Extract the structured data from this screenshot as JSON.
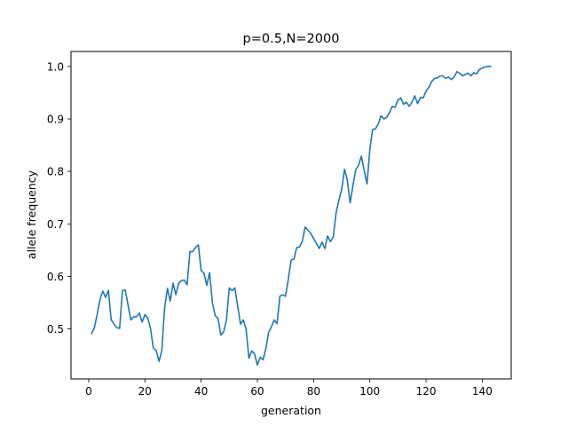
{
  "chart_data": {
    "type": "line",
    "title": "p=0.5,N=2000",
    "xlabel": "generation",
    "ylabel": "allele frequency",
    "xlim": [
      -6.3,
      150.3
    ],
    "ylim": [
      0.4045,
      1.0285
    ],
    "xticks": [
      0,
      20,
      40,
      60,
      80,
      100,
      120,
      140
    ],
    "yticks": [
      0.5,
      0.6,
      0.7,
      0.8,
      0.9,
      1.0
    ],
    "ytick_labels": [
      "0.5",
      "0.6",
      "0.7",
      "0.8",
      "0.9",
      "1.0"
    ],
    "grid": false,
    "legend": "none",
    "series": [
      {
        "color": "#1f77b4",
        "x": [
          1,
          2,
          3,
          4,
          5,
          6,
          7,
          8,
          9,
          10,
          11,
          12,
          13,
          14,
          15,
          16,
          17,
          18,
          19,
          20,
          21,
          22,
          23,
          24,
          25,
          26,
          27,
          28,
          29,
          30,
          31,
          32,
          33,
          34,
          35,
          36,
          37,
          38,
          39,
          40,
          41,
          42,
          43,
          44,
          45,
          46,
          47,
          48,
          49,
          50,
          51,
          52,
          53,
          54,
          55,
          56,
          57,
          58,
          59,
          60,
          61,
          62,
          63,
          64,
          65,
          66,
          67,
          68,
          69,
          70,
          71,
          72,
          73,
          74,
          75,
          76,
          77,
          78,
          79,
          80,
          81,
          82,
          83,
          84,
          85,
          86,
          87,
          88,
          89,
          90,
          91,
          92,
          93,
          94,
          95,
          96,
          97,
          98,
          99,
          100,
          101,
          102,
          103,
          104,
          105,
          106,
          107,
          108,
          109,
          110,
          111,
          112,
          113,
          114,
          115,
          116,
          117,
          118,
          119,
          120,
          121,
          122,
          123,
          124,
          125,
          126,
          127,
          128,
          129,
          130,
          131,
          132,
          133,
          134,
          135,
          136,
          137,
          138,
          139,
          140,
          141,
          142,
          143
        ],
        "y": [
          0.491,
          0.502,
          0.527,
          0.556,
          0.572,
          0.56,
          0.573,
          0.517,
          0.509,
          0.502,
          0.501,
          0.573,
          0.574,
          0.545,
          0.517,
          0.523,
          0.523,
          0.53,
          0.513,
          0.527,
          0.521,
          0.5,
          0.463,
          0.459,
          0.438,
          0.458,
          0.54,
          0.577,
          0.553,
          0.587,
          0.565,
          0.587,
          0.592,
          0.593,
          0.584,
          0.647,
          0.647,
          0.655,
          0.66,
          0.611,
          0.606,
          0.583,
          0.607,
          0.55,
          0.525,
          0.52,
          0.488,
          0.494,
          0.517,
          0.578,
          0.573,
          0.578,
          0.543,
          0.509,
          0.517,
          0.499,
          0.444,
          0.458,
          0.452,
          0.431,
          0.446,
          0.441,
          0.462,
          0.493,
          0.504,
          0.517,
          0.51,
          0.562,
          0.565,
          0.562,
          0.594,
          0.631,
          0.633,
          0.655,
          0.656,
          0.667,
          0.694,
          0.688,
          0.682,
          0.672,
          0.663,
          0.653,
          0.665,
          0.653,
          0.677,
          0.666,
          0.675,
          0.721,
          0.745,
          0.766,
          0.804,
          0.783,
          0.74,
          0.773,
          0.803,
          0.812,
          0.829,
          0.802,
          0.776,
          0.841,
          0.88,
          0.881,
          0.89,
          0.906,
          0.9,
          0.903,
          0.912,
          0.924,
          0.922,
          0.936,
          0.94,
          0.928,
          0.932,
          0.924,
          0.932,
          0.944,
          0.929,
          0.941,
          0.94,
          0.953,
          0.96,
          0.971,
          0.977,
          0.978,
          0.982,
          0.982,
          0.977,
          0.98,
          0.975,
          0.98,
          0.99,
          0.987,
          0.982,
          0.985,
          0.987,
          0.982,
          0.988,
          0.986,
          0.994,
          0.997,
          0.999,
          1.0,
          1.0
        ]
      }
    ]
  }
}
